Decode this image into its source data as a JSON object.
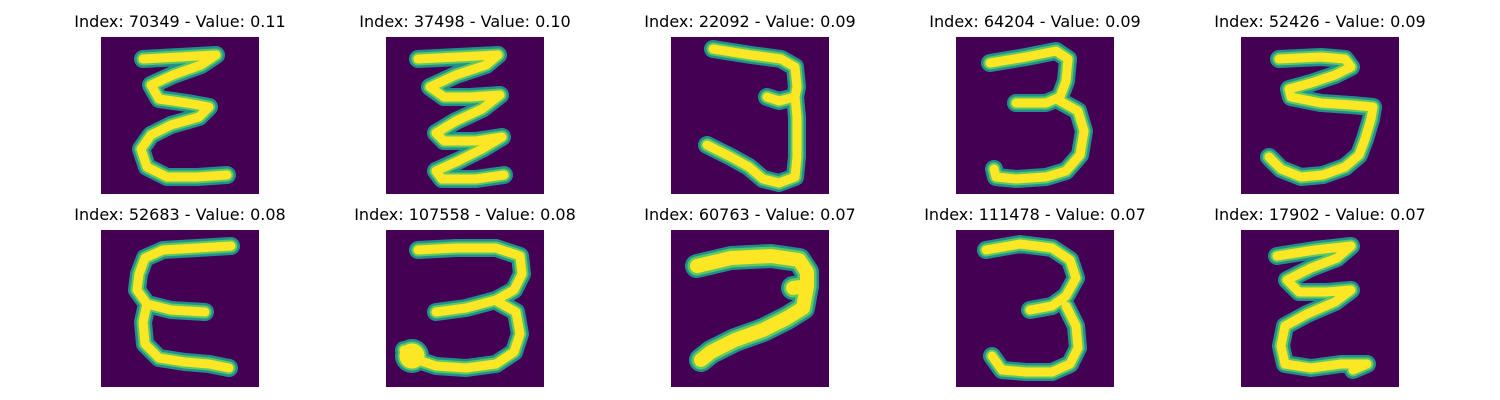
{
  "colors": {
    "background": "#440154",
    "stroke_edge": "#21908d",
    "stroke_mid": "#5ec962",
    "stroke_core": "#fde725"
  },
  "panels": [
    {
      "title": "Index: 70349 - Value: 0.11"
    },
    {
      "title": "Index: 37498 - Value: 0.10"
    },
    {
      "title": "Index: 22092 - Value: 0.09"
    },
    {
      "title": "Index: 64204 - Value: 0.09"
    },
    {
      "title": "Index: 52426 - Value: 0.09"
    },
    {
      "title": "Index: 52683 - Value: 0.08"
    },
    {
      "title": "Index: 107558 - Value: 0.08"
    },
    {
      "title": "Index: 60763 - Value: 0.07"
    },
    {
      "title": "Index: 111478 - Value: 0.07"
    },
    {
      "title": "Index: 17902 - Value: 0.07"
    }
  ]
}
